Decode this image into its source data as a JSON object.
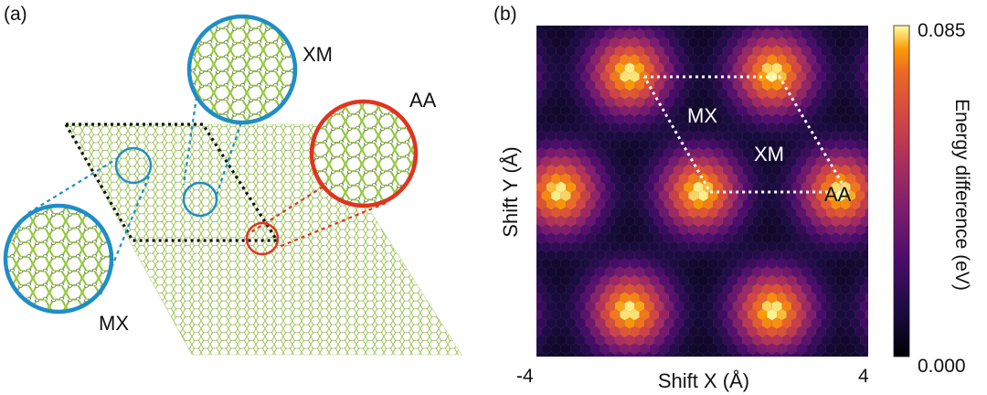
{
  "panel_a": {
    "label": "(a)",
    "callouts": [
      {
        "name": "XM",
        "ring_color": "#1f8dc7"
      },
      {
        "name": "AA",
        "ring_color": "#e0341f"
      },
      {
        "name": "MX",
        "ring_color": "#1f8dc7"
      }
    ],
    "cell_outline_color": "#111111",
    "lattice_color": "#8fc23a"
  },
  "panel_b": {
    "label": "(b)",
    "chart_data": {
      "type": "heatmap",
      "xlabel": "Shift X (Å)",
      "ylabel": "Shift Y (Å)",
      "x_tick_labels": [
        "-4",
        "4"
      ],
      "xlim": [
        -4,
        4
      ],
      "ylim": [
        -4,
        4
      ],
      "colorbar": {
        "label": "Energy difference (eV)",
        "min_label": "0.000",
        "max_label": "0.085",
        "range": [
          0.0,
          0.085
        ],
        "colormap": "inferno"
      },
      "annotations": [
        "MX",
        "XM",
        "AA"
      ],
      "peak_value": 0.085,
      "min_value": 0.0
    }
  }
}
